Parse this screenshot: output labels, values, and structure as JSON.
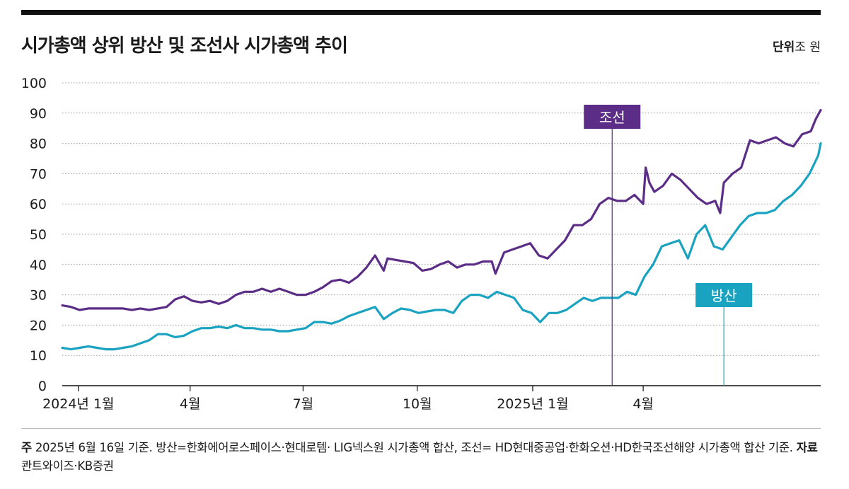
{
  "title": "시가총액 상위 방산 및 조선사 시가총액 추이",
  "unit_label": "단위",
  "unit_value": "조 원",
  "note_label": "주",
  "note_text": "2025년 6월 16일 기준. 방산=한화에어로스페이스·현대로템· LIG넥스원 시가총액 합산, 조선= HD현대중공업·한화오션·HD한국조선해양 시가총액 합산 기준.",
  "source_label": "자료",
  "source_text": "콴트와이즈·KB증권",
  "colors": {
    "shipbuilding": "#5b2d86",
    "defense": "#1aa3c0",
    "grid": "#9a9a9a"
  },
  "chart_data": {
    "type": "line",
    "title": "시가총액 상위 방산 및 조선사 시가총액 추이",
    "ylim": [
      0,
      100
    ],
    "yticks": [
      0,
      10,
      20,
      30,
      40,
      50,
      60,
      70,
      80,
      90,
      100
    ],
    "grid": true,
    "xticks": [
      {
        "label": "2024년 1월",
        "date": "2024-01-02"
      },
      {
        "label": "4월",
        "date": "2024-04-01"
      },
      {
        "label": "7월",
        "date": "2024-07-01"
      },
      {
        "label": "10월",
        "date": "2024-10-01"
      },
      {
        "label": "2025년 1월",
        "date": "2025-01-02"
      },
      {
        "label": "4월",
        "date": "2025-04-01"
      }
    ],
    "series": [
      {
        "name": "조선",
        "label_anchor": "2025-03-07",
        "points": [
          [
            "2023-12-20",
            26.5
          ],
          [
            "2023-12-27",
            26
          ],
          [
            "2024-01-03",
            25
          ],
          [
            "2024-01-10",
            25.5
          ],
          [
            "2024-01-17",
            25.5
          ],
          [
            "2024-01-24",
            25.5
          ],
          [
            "2024-01-31",
            25.5
          ],
          [
            "2024-02-07",
            25.5
          ],
          [
            "2024-02-14",
            25
          ],
          [
            "2024-02-21",
            25.5
          ],
          [
            "2024-02-28",
            25
          ],
          [
            "2024-03-06",
            25.5
          ],
          [
            "2024-03-13",
            26
          ],
          [
            "2024-03-20",
            28.5
          ],
          [
            "2024-03-27",
            29.5
          ],
          [
            "2024-04-03",
            28
          ],
          [
            "2024-04-10",
            27.5
          ],
          [
            "2024-04-17",
            28
          ],
          [
            "2024-04-24",
            27
          ],
          [
            "2024-05-01",
            28
          ],
          [
            "2024-05-08",
            30
          ],
          [
            "2024-05-15",
            31
          ],
          [
            "2024-05-22",
            31
          ],
          [
            "2024-05-29",
            32
          ],
          [
            "2024-06-05",
            31
          ],
          [
            "2024-06-12",
            32
          ],
          [
            "2024-06-19",
            31
          ],
          [
            "2024-06-26",
            30
          ],
          [
            "2024-07-03",
            30
          ],
          [
            "2024-07-10",
            31
          ],
          [
            "2024-07-17",
            32.5
          ],
          [
            "2024-07-24",
            34.5
          ],
          [
            "2024-07-31",
            35
          ],
          [
            "2024-08-07",
            34
          ],
          [
            "2024-08-14",
            36
          ],
          [
            "2024-08-21",
            39
          ],
          [
            "2024-08-28",
            43
          ],
          [
            "2024-09-04",
            38
          ],
          [
            "2024-09-07",
            42
          ],
          [
            "2024-09-14",
            41.5
          ],
          [
            "2024-09-21",
            41
          ],
          [
            "2024-09-28",
            40.5
          ],
          [
            "2024-10-05",
            38
          ],
          [
            "2024-10-12",
            38.5
          ],
          [
            "2024-10-19",
            40
          ],
          [
            "2024-10-26",
            41
          ],
          [
            "2024-11-02",
            39
          ],
          [
            "2024-11-09",
            40
          ],
          [
            "2024-11-16",
            40
          ],
          [
            "2024-11-23",
            41
          ],
          [
            "2024-11-30",
            41
          ],
          [
            "2024-12-03",
            37
          ],
          [
            "2024-12-10",
            44
          ],
          [
            "2024-12-17",
            45
          ],
          [
            "2024-12-24",
            46
          ],
          [
            "2024-12-31",
            47
          ],
          [
            "2025-01-07",
            43
          ],
          [
            "2025-01-14",
            42
          ],
          [
            "2025-01-21",
            45
          ],
          [
            "2025-01-28",
            48
          ],
          [
            "2025-02-04",
            53
          ],
          [
            "2025-02-11",
            53
          ],
          [
            "2025-02-18",
            55
          ],
          [
            "2025-02-25",
            60
          ],
          [
            "2025-03-04",
            62
          ],
          [
            "2025-03-11",
            61
          ],
          [
            "2025-03-18",
            61
          ],
          [
            "2025-03-25",
            63
          ],
          [
            "2025-04-01",
            60
          ],
          [
            "2025-04-03",
            72
          ],
          [
            "2025-04-06",
            67
          ],
          [
            "2025-04-10",
            64
          ],
          [
            "2025-04-17",
            66
          ],
          [
            "2025-04-24",
            70
          ],
          [
            "2025-05-01",
            68
          ],
          [
            "2025-05-08",
            65
          ],
          [
            "2025-05-15",
            62
          ],
          [
            "2025-05-22",
            60
          ],
          [
            "2025-05-29",
            61
          ],
          [
            "2025-06-02",
            57
          ],
          [
            "2025-06-05",
            67
          ],
          [
            "2025-06-12",
            70
          ],
          [
            "2025-06-19",
            72
          ],
          [
            "2025-06-26",
            81
          ],
          [
            "2025-07-03",
            80
          ],
          [
            "2025-07-10",
            81
          ],
          [
            "2025-07-17",
            82
          ],
          [
            "2025-07-24",
            80
          ],
          [
            "2025-07-31",
            79
          ],
          [
            "2025-08-07",
            83
          ],
          [
            "2025-08-14",
            84
          ],
          [
            "2025-08-18",
            88
          ],
          [
            "2025-08-22",
            91
          ]
        ]
      },
      {
        "name": "방산",
        "label_anchor": "2025-06-05",
        "points": [
          [
            "2023-12-20",
            12.5
          ],
          [
            "2023-12-27",
            12
          ],
          [
            "2024-01-03",
            12.5
          ],
          [
            "2024-01-10",
            13
          ],
          [
            "2024-01-17",
            12.5
          ],
          [
            "2024-01-24",
            12
          ],
          [
            "2024-01-31",
            12
          ],
          [
            "2024-02-07",
            12.5
          ],
          [
            "2024-02-14",
            13
          ],
          [
            "2024-02-21",
            14
          ],
          [
            "2024-02-28",
            15
          ],
          [
            "2024-03-06",
            17
          ],
          [
            "2024-03-13",
            17
          ],
          [
            "2024-03-20",
            16
          ],
          [
            "2024-03-27",
            16.5
          ],
          [
            "2024-04-03",
            18
          ],
          [
            "2024-04-10",
            19
          ],
          [
            "2024-04-17",
            19
          ],
          [
            "2024-04-24",
            19.5
          ],
          [
            "2024-05-01",
            19
          ],
          [
            "2024-05-08",
            20
          ],
          [
            "2024-05-15",
            19
          ],
          [
            "2024-05-22",
            19
          ],
          [
            "2024-05-29",
            18.5
          ],
          [
            "2024-06-05",
            18.5
          ],
          [
            "2024-06-12",
            18
          ],
          [
            "2024-06-19",
            18
          ],
          [
            "2024-06-26",
            18.5
          ],
          [
            "2024-07-03",
            19
          ],
          [
            "2024-07-10",
            21
          ],
          [
            "2024-07-17",
            21
          ],
          [
            "2024-07-24",
            20.5
          ],
          [
            "2024-07-31",
            21.5
          ],
          [
            "2024-08-07",
            23
          ],
          [
            "2024-08-14",
            24
          ],
          [
            "2024-08-21",
            25
          ],
          [
            "2024-08-28",
            26
          ],
          [
            "2024-09-04",
            22
          ],
          [
            "2024-09-11",
            24
          ],
          [
            "2024-09-18",
            25.5
          ],
          [
            "2024-09-25",
            25
          ],
          [
            "2024-10-02",
            24
          ],
          [
            "2024-10-09",
            24.5
          ],
          [
            "2024-10-16",
            25
          ],
          [
            "2024-10-23",
            25
          ],
          [
            "2024-10-30",
            24
          ],
          [
            "2024-11-06",
            28
          ],
          [
            "2024-11-13",
            30
          ],
          [
            "2024-11-20",
            30
          ],
          [
            "2024-11-27",
            29
          ],
          [
            "2024-12-04",
            31
          ],
          [
            "2024-12-11",
            30
          ],
          [
            "2024-12-18",
            29
          ],
          [
            "2024-12-25",
            25
          ],
          [
            "2025-01-01",
            24
          ],
          [
            "2025-01-08",
            21
          ],
          [
            "2025-01-15",
            24
          ],
          [
            "2025-01-22",
            24
          ],
          [
            "2025-01-29",
            25
          ],
          [
            "2025-02-05",
            27
          ],
          [
            "2025-02-12",
            29
          ],
          [
            "2025-02-19",
            28
          ],
          [
            "2025-02-26",
            29
          ],
          [
            "2025-03-05",
            29
          ],
          [
            "2025-03-12",
            29
          ],
          [
            "2025-03-19",
            31
          ],
          [
            "2025-03-26",
            30
          ],
          [
            "2025-04-02",
            36
          ],
          [
            "2025-04-09",
            40
          ],
          [
            "2025-04-16",
            46
          ],
          [
            "2025-04-23",
            47
          ],
          [
            "2025-04-30",
            48
          ],
          [
            "2025-05-07",
            42
          ],
          [
            "2025-05-14",
            50
          ],
          [
            "2025-05-21",
            53
          ],
          [
            "2025-05-28",
            46
          ],
          [
            "2025-06-04",
            45
          ],
          [
            "2025-06-11",
            49
          ],
          [
            "2025-06-18",
            53
          ],
          [
            "2025-06-25",
            56
          ],
          [
            "2025-07-02",
            57
          ],
          [
            "2025-07-09",
            57
          ],
          [
            "2025-07-16",
            58
          ],
          [
            "2025-07-23",
            61
          ],
          [
            "2025-07-30",
            63
          ],
          [
            "2025-08-06",
            66
          ],
          [
            "2025-08-13",
            70
          ],
          [
            "2025-08-20",
            76
          ],
          [
            "2025-08-22",
            80
          ]
        ]
      }
    ]
  }
}
